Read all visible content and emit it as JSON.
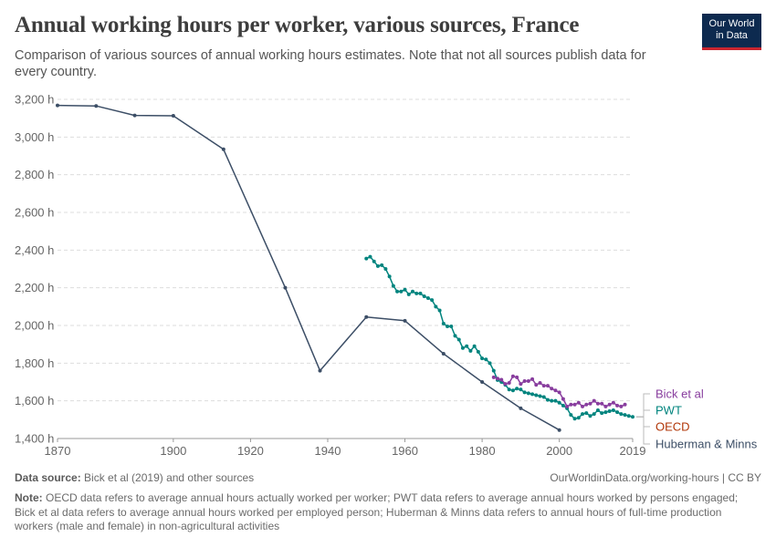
{
  "header": {
    "title": "Annual working hours per worker, various sources, France",
    "subtitle": "Comparison of various sources of annual working hours estimates. Note that not all sources publish data for every country.",
    "logo_line1": "Our World",
    "logo_line2": "in Data"
  },
  "footer": {
    "source_label": "Data source:",
    "source_text": " Bick et al (2019) and other sources",
    "url_text": "OurWorldinData.org/working-hours | CC BY",
    "note_label": "Note:",
    "note_text": " OECD data refers to average annual hours actually worked per worker; PWT data refers to average annual hours worked by persons engaged; Bick et al data refers to average annual hours worked per employed person; Huberman & Minns data refers to annual hours of full-time production workers (male and female) in non-agricultural activities"
  },
  "colors": {
    "huberman": "#3c4e66",
    "pwt": "#00847e",
    "bick": "#883d9e",
    "oecd": "#b13507",
    "grid": "#dddddd",
    "axis_text": "#666666"
  },
  "chart_data": {
    "type": "line",
    "xlim": [
      1870,
      2019
    ],
    "ylim": [
      1400,
      3200
    ],
    "x_ticks": [
      {
        "value": 1870,
        "label": "1870"
      },
      {
        "value": 1900,
        "label": "1900"
      },
      {
        "value": 1920,
        "label": "1920"
      },
      {
        "value": 1940,
        "label": "1940"
      },
      {
        "value": 1960,
        "label": "1960"
      },
      {
        "value": 1980,
        "label": "1980"
      },
      {
        "value": 2000,
        "label": "2000"
      },
      {
        "value": 2019,
        "label": "2019"
      }
    ],
    "y_ticks": [
      {
        "value": 1400,
        "label": "1,400 h"
      },
      {
        "value": 1600,
        "label": "1,600 h"
      },
      {
        "value": 1800,
        "label": "1,800 h"
      },
      {
        "value": 2000,
        "label": "2,000 h"
      },
      {
        "value": 2200,
        "label": "2,200 h"
      },
      {
        "value": 2400,
        "label": "2,400 h"
      },
      {
        "value": 2600,
        "label": "2,600 h"
      },
      {
        "value": 2800,
        "label": "2,800 h"
      },
      {
        "value": 3000,
        "label": "3,000 h"
      },
      {
        "value": 3200,
        "label": "3,200 h"
      }
    ],
    "grid": true,
    "legend": "right",
    "series": [
      {
        "name": "Huberman & Minns",
        "color_key": "huberman",
        "x": [
          1870,
          1880,
          1890,
          1900,
          1913,
          1929,
          1938,
          1950,
          1960,
          1970,
          1980,
          1990,
          2000
        ],
        "y": [
          3168,
          3165,
          3115,
          3113,
          2935,
          2200,
          1760,
          2045,
          2025,
          1850,
          1700,
          1560,
          1445
        ]
      },
      {
        "name": "PWT",
        "color_key": "pwt",
        "x": [
          1950,
          1951,
          1952,
          1953,
          1954,
          1955,
          1956,
          1957,
          1958,
          1959,
          1960,
          1961,
          1962,
          1963,
          1964,
          1965,
          1966,
          1967,
          1968,
          1969,
          1970,
          1971,
          1972,
          1973,
          1974,
          1975,
          1976,
          1977,
          1978,
          1979,
          1980,
          1981,
          1982,
          1983,
          1984,
          1985,
          1986,
          1987,
          1988,
          1989,
          1990,
          1991,
          1992,
          1993,
          1994,
          1995,
          1996,
          1997,
          1998,
          1999,
          2000,
          2001,
          2002,
          2003,
          2004,
          2005,
          2006,
          2007,
          2008,
          2009,
          2010,
          2011,
          2012,
          2013,
          2014,
          2015,
          2016,
          2017,
          2018,
          2019
        ],
        "y": [
          2355,
          2365,
          2340,
          2315,
          2320,
          2300,
          2260,
          2210,
          2180,
          2180,
          2190,
          2165,
          2180,
          2170,
          2170,
          2155,
          2145,
          2135,
          2100,
          2080,
          2010,
          1995,
          1995,
          1945,
          1925,
          1880,
          1890,
          1865,
          1890,
          1860,
          1825,
          1820,
          1800,
          1760,
          1710,
          1700,
          1685,
          1660,
          1655,
          1665,
          1660,
          1645,
          1640,
          1635,
          1630,
          1625,
          1620,
          1605,
          1600,
          1600,
          1590,
          1575,
          1560,
          1525,
          1505,
          1510,
          1530,
          1535,
          1520,
          1530,
          1550,
          1535,
          1540,
          1545,
          1550,
          1540,
          1530,
          1525,
          1520,
          1515
        ]
      },
      {
        "name": "Bick et al",
        "color_key": "bick",
        "x": [
          1983,
          1984,
          1985,
          1986,
          1987,
          1988,
          1989,
          1990,
          1991,
          1992,
          1993,
          1994,
          1995,
          1996,
          1997,
          1998,
          1999,
          2000,
          2001,
          2002,
          2003,
          2004,
          2005,
          2006,
          2007,
          2008,
          2009,
          2010,
          2011,
          2012,
          2013,
          2014,
          2015,
          2016,
          2017
        ],
        "y": [
          1725,
          1718,
          1712,
          1690,
          1695,
          1730,
          1725,
          1690,
          1705,
          1705,
          1715,
          1685,
          1695,
          1680,
          1680,
          1665,
          1655,
          1645,
          1610,
          1570,
          1580,
          1580,
          1590,
          1570,
          1580,
          1585,
          1600,
          1585,
          1585,
          1570,
          1580,
          1590,
          1575,
          1570,
          1580
        ]
      }
    ],
    "legend_entries": [
      {
        "name": "Bick et al",
        "color_key": "bick"
      },
      {
        "name": "PWT",
        "color_key": "pwt"
      },
      {
        "name": "OECD",
        "color_key": "oecd"
      },
      {
        "name": "Huberman & Minns",
        "color_key": "huberman"
      }
    ]
  }
}
